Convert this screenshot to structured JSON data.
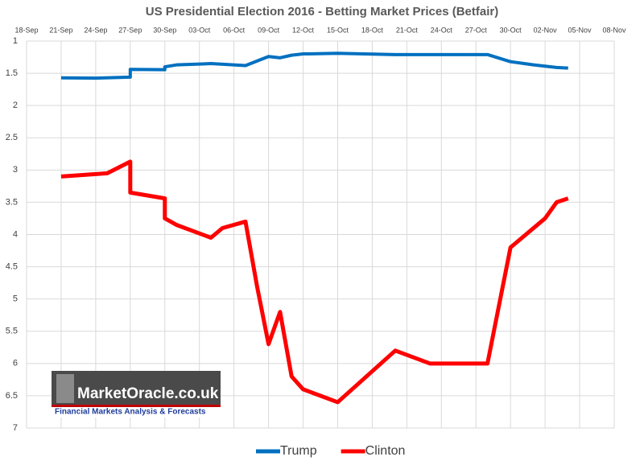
{
  "chart_data": {
    "type": "line",
    "title": "US Presidential Election 2016 - Betting Market Prices (Betfair)",
    "xlim": [
      "18-Sep",
      "08-Nov"
    ],
    "xticks": [
      "18-Sep",
      "21-Sep",
      "24-Sep",
      "27-Sep",
      "30-Sep",
      "03-Oct",
      "06-Oct",
      "09-Oct",
      "12-Oct",
      "15-Oct",
      "18-Oct",
      "21-Oct",
      "24-Oct",
      "27-Oct",
      "30-Oct",
      "02-Nov",
      "05-Nov",
      "08-Nov"
    ],
    "ylim": [
      1,
      7
    ],
    "y_inverted": true,
    "yticks": [
      1,
      1.5,
      2,
      2.5,
      3,
      3.5,
      4,
      4.5,
      5,
      5.5,
      6,
      6.5,
      7
    ],
    "grid": true,
    "legend": "bottom",
    "series": [
      {
        "name": "Trump",
        "color": "#0070c0",
        "x": [
          "21-Sep",
          "24-Sep",
          "27-Sep",
          "27-Sep",
          "30-Sep",
          "30-Sep",
          "01-Oct",
          "04-Oct",
          "07-Oct",
          "09-Oct",
          "10-Oct",
          "11-Oct",
          "12-Oct",
          "15-Oct",
          "20-Oct",
          "28-Oct",
          "30-Oct",
          "01-Nov",
          "03-Nov",
          "04-Nov"
        ],
        "values": [
          1.57,
          1.575,
          1.56,
          1.44,
          1.445,
          1.4,
          1.37,
          1.35,
          1.38,
          1.24,
          1.26,
          1.22,
          1.2,
          1.19,
          1.21,
          1.21,
          1.32,
          1.37,
          1.41,
          1.42
        ]
      },
      {
        "name": "Clinton",
        "color": "#ff0000",
        "x": [
          "21-Sep",
          "25-Sep",
          "27-Sep",
          "27-Sep",
          "30-Sep",
          "30-Sep",
          "01-Oct",
          "04-Oct",
          "05-Oct",
          "07-Oct",
          "08-Oct",
          "09-Oct",
          "10-Oct",
          "11-Oct",
          "12-Oct",
          "15-Oct",
          "20-Oct",
          "23-Oct",
          "28-Oct",
          "30-Oct",
          "02-Nov",
          "03-Nov",
          "04-Nov"
        ],
        "values": [
          3.1,
          3.05,
          2.87,
          3.35,
          3.44,
          3.75,
          3.85,
          4.05,
          3.9,
          3.8,
          4.8,
          5.7,
          5.2,
          6.2,
          6.4,
          6.6,
          5.8,
          6.0,
          6.0,
          4.2,
          3.75,
          3.5,
          3.44
        ]
      }
    ],
    "watermark": {
      "name": "MarketOracle.co.uk",
      "tagline": "Financial Markets Analysis & Forecasts"
    }
  }
}
